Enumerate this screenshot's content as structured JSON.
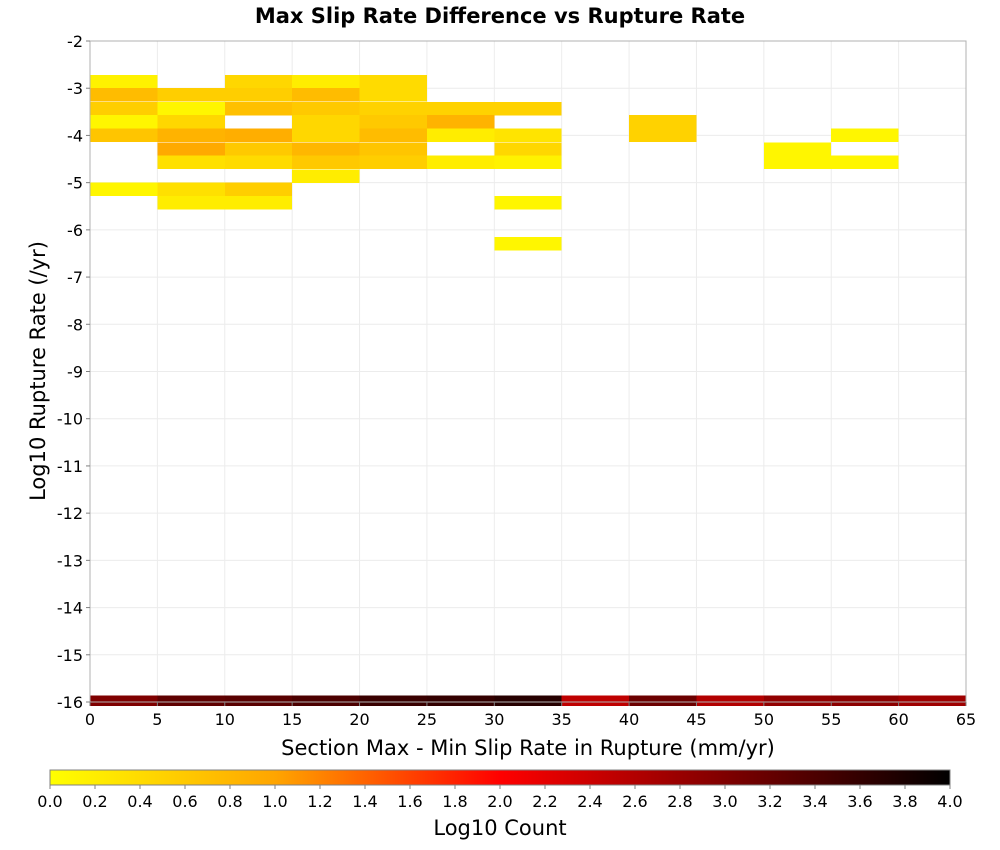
{
  "chart_data": {
    "type": "heatmap",
    "title": "Max Slip Rate Difference vs Rupture Rate",
    "xlabel": "Section Max - Min Slip Rate in Rupture (mm/yr)",
    "ylabel": "Log10 Rupture Rate (/yr)",
    "xlim": [
      0,
      65
    ],
    "ylim": [
      -16,
      -2
    ],
    "x_ticks": [
      0,
      5,
      10,
      15,
      20,
      25,
      30,
      35,
      40,
      45,
      50,
      55,
      60,
      65
    ],
    "y_ticks": [
      -2,
      -3,
      -4,
      -5,
      -6,
      -7,
      -8,
      -9,
      -10,
      -11,
      -12,
      -13,
      -14,
      -15,
      -16
    ],
    "x_bin_width": 5,
    "y_bin_height": 0.2857,
    "grid": true,
    "colorbar": {
      "label": "Log10 Count",
      "min": 0.0,
      "max": 4.0,
      "ticks": [
        "0.0",
        "0.2",
        "0.4",
        "0.6",
        "0.8",
        "1.0",
        "1.2",
        "1.4",
        "1.6",
        "1.8",
        "2.0",
        "2.2",
        "2.4",
        "2.6",
        "2.8",
        "3.0",
        "3.2",
        "3.4",
        "3.6",
        "3.8",
        "4.0"
      ],
      "stops": [
        {
          "value": 0.0,
          "color": "#ffff00"
        },
        {
          "value": 1.0,
          "color": "#ffa500"
        },
        {
          "value": 2.0,
          "color": "#ff0000"
        },
        {
          "value": 3.0,
          "color": "#7f0000"
        },
        {
          "value": 4.0,
          "color": "#000000"
        }
      ]
    },
    "cells": [
      {
        "x": 0,
        "y": -2.86,
        "v": 0.15
      },
      {
        "x": 0,
        "y": -3.14,
        "v": 0.75
      },
      {
        "x": 0,
        "y": -3.43,
        "v": 0.55
      },
      {
        "x": 0,
        "y": -3.71,
        "v": 0.1
      },
      {
        "x": 0,
        "y": -4.0,
        "v": 0.65
      },
      {
        "x": 0,
        "y": -5.14,
        "v": 0.1
      },
      {
        "x": 5,
        "y": -3.14,
        "v": 0.55
      },
      {
        "x": 5,
        "y": -3.43,
        "v": 0.1
      },
      {
        "x": 5,
        "y": -3.71,
        "v": 0.45
      },
      {
        "x": 5,
        "y": -4.0,
        "v": 0.85
      },
      {
        "x": 5,
        "y": -4.29,
        "v": 0.95
      },
      {
        "x": 5,
        "y": -4.57,
        "v": 0.35
      },
      {
        "x": 5,
        "y": -5.14,
        "v": 0.35
      },
      {
        "x": 5,
        "y": -5.43,
        "v": 0.2
      },
      {
        "x": 10,
        "y": -2.86,
        "v": 0.45
      },
      {
        "x": 10,
        "y": -3.14,
        "v": 0.55
      },
      {
        "x": 10,
        "y": -3.43,
        "v": 0.7
      },
      {
        "x": 10,
        "y": -4.0,
        "v": 0.9
      },
      {
        "x": 10,
        "y": -4.29,
        "v": 0.6
      },
      {
        "x": 10,
        "y": -4.57,
        "v": 0.4
      },
      {
        "x": 10,
        "y": -5.14,
        "v": 0.55
      },
      {
        "x": 10,
        "y": -5.43,
        "v": 0.2
      },
      {
        "x": 15,
        "y": -2.86,
        "v": 0.2
      },
      {
        "x": 15,
        "y": -3.14,
        "v": 0.75
      },
      {
        "x": 15,
        "y": -3.43,
        "v": 0.6
      },
      {
        "x": 15,
        "y": -3.71,
        "v": 0.45
      },
      {
        "x": 15,
        "y": -4.0,
        "v": 0.45
      },
      {
        "x": 15,
        "y": -4.29,
        "v": 0.8
      },
      {
        "x": 15,
        "y": -4.57,
        "v": 0.6
      },
      {
        "x": 15,
        "y": -4.86,
        "v": 0.2
      },
      {
        "x": 20,
        "y": -2.86,
        "v": 0.4
      },
      {
        "x": 20,
        "y": -3.14,
        "v": 0.4
      },
      {
        "x": 20,
        "y": -3.43,
        "v": 0.5
      },
      {
        "x": 20,
        "y": -3.71,
        "v": 0.6
      },
      {
        "x": 20,
        "y": -4.0,
        "v": 0.75
      },
      {
        "x": 20,
        "y": -4.29,
        "v": 0.65
      },
      {
        "x": 20,
        "y": -4.57,
        "v": 0.55
      },
      {
        "x": 25,
        "y": -3.43,
        "v": 0.5
      },
      {
        "x": 25,
        "y": -3.71,
        "v": 0.85
      },
      {
        "x": 25,
        "y": -4.0,
        "v": 0.2
      },
      {
        "x": 25,
        "y": -4.57,
        "v": 0.2
      },
      {
        "x": 30,
        "y": -3.43,
        "v": 0.5
      },
      {
        "x": 30,
        "y": -4.0,
        "v": 0.3
      },
      {
        "x": 30,
        "y": -4.29,
        "v": 0.45
      },
      {
        "x": 30,
        "y": -4.57,
        "v": 0.15
      },
      {
        "x": 30,
        "y": -5.43,
        "v": 0.1
      },
      {
        "x": 30,
        "y": -6.29,
        "v": 0.1
      },
      {
        "x": 40,
        "y": -3.71,
        "v": 0.5
      },
      {
        "x": 40,
        "y": -4.0,
        "v": 0.5
      },
      {
        "x": 50,
        "y": -4.29,
        "v": 0.1
      },
      {
        "x": 50,
        "y": -4.57,
        "v": 0.1
      },
      {
        "x": 55,
        "y": -4.0,
        "v": 0.1
      },
      {
        "x": 55,
        "y": -4.57,
        "v": 0.1
      },
      {
        "x": 0,
        "y": -16.0,
        "v": 3.0
      },
      {
        "x": 5,
        "y": -16.0,
        "v": 3.25
      },
      {
        "x": 10,
        "y": -16.0,
        "v": 3.3
      },
      {
        "x": 15,
        "y": -16.0,
        "v": 3.4
      },
      {
        "x": 20,
        "y": -16.0,
        "v": 3.55
      },
      {
        "x": 25,
        "y": -16.0,
        "v": 3.6
      },
      {
        "x": 30,
        "y": -16.0,
        "v": 3.7
      },
      {
        "x": 35,
        "y": -16.0,
        "v": 2.5
      },
      {
        "x": 40,
        "y": -16.0,
        "v": 3.15
      },
      {
        "x": 45,
        "y": -16.0,
        "v": 2.6
      },
      {
        "x": 50,
        "y": -16.0,
        "v": 2.85
      },
      {
        "x": 55,
        "y": -16.0,
        "v": 2.9
      },
      {
        "x": 60,
        "y": -16.0,
        "v": 2.75
      }
    ]
  }
}
